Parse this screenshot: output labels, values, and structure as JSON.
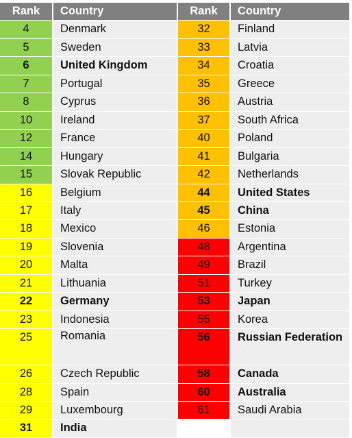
{
  "colors": {
    "header": "#808080",
    "green": "#92d050",
    "yellow": "#ffff00",
    "orange": "#ffc000",
    "red": "#ff0000",
    "country_bg": "#eeeeee"
  },
  "headers": {
    "rank": "Rank",
    "country": "Country"
  },
  "left": [
    {
      "rank": "4",
      "country": "Denmark",
      "band": "green",
      "bold": false
    },
    {
      "rank": "5",
      "country": "Sweden",
      "band": "green",
      "bold": false
    },
    {
      "rank": "6",
      "country": "United Kingdom",
      "band": "green",
      "bold": true
    },
    {
      "rank": "7",
      "country": "Portugal",
      "band": "green",
      "bold": false
    },
    {
      "rank": "8",
      "country": "Cyprus",
      "band": "green",
      "bold": false
    },
    {
      "rank": "10",
      "country": "Ireland",
      "band": "green",
      "bold": false
    },
    {
      "rank": "12",
      "country": "France",
      "band": "green",
      "bold": false
    },
    {
      "rank": "14",
      "country": "Hungary",
      "band": "green",
      "bold": false
    },
    {
      "rank": "15",
      "country": "Slovak Republic",
      "band": "green",
      "bold": false
    },
    {
      "rank": "16",
      "country": "Belgium",
      "band": "yellow",
      "bold": false
    },
    {
      "rank": "17",
      "country": "Italy",
      "band": "yellow",
      "bold": false
    },
    {
      "rank": "18",
      "country": "Mexico",
      "band": "yellow",
      "bold": false
    },
    {
      "rank": "19",
      "country": "Slovenia",
      "band": "yellow",
      "bold": false
    },
    {
      "rank": "20",
      "country": "Malta",
      "band": "yellow",
      "bold": false
    },
    {
      "rank": "21",
      "country": "Lithuania",
      "band": "yellow",
      "bold": false
    },
    {
      "rank": "22",
      "country": "Germany",
      "band": "yellow",
      "bold": true
    },
    {
      "rank": "23",
      "country": "Indonesia",
      "band": "yellow",
      "bold": false
    },
    {
      "rank": "25",
      "country": "Romania",
      "band": "yellow",
      "bold": false
    },
    {
      "rank": "26",
      "country": "Czech Republic",
      "band": "yellow",
      "bold": false
    },
    {
      "rank": "28",
      "country": "Spain",
      "band": "yellow",
      "bold": false
    },
    {
      "rank": "29",
      "country": "Luxembourg",
      "band": "yellow",
      "bold": false
    },
    {
      "rank": "31",
      "country": "India",
      "band": "yellow",
      "bold": true
    }
  ],
  "right": [
    {
      "rank": "32",
      "country": "Finland",
      "band": "orange",
      "bold": false
    },
    {
      "rank": "33",
      "country": "Latvia",
      "band": "orange",
      "bold": false
    },
    {
      "rank": "34",
      "country": "Croatia",
      "band": "orange",
      "bold": false
    },
    {
      "rank": "35",
      "country": "Greece",
      "band": "orange",
      "bold": false
    },
    {
      "rank": "36",
      "country": "Austria",
      "band": "orange",
      "bold": false
    },
    {
      "rank": "37",
      "country": "South Africa",
      "band": "orange",
      "bold": false
    },
    {
      "rank": "40",
      "country": "Poland",
      "band": "orange",
      "bold": false
    },
    {
      "rank": "41",
      "country": "Bulgaria",
      "band": "orange",
      "bold": false
    },
    {
      "rank": "42",
      "country": "Netherlands",
      "band": "orange",
      "bold": false
    },
    {
      "rank": "44",
      "country": "United States",
      "band": "orange",
      "bold": true
    },
    {
      "rank": "45",
      "country": "China",
      "band": "orange",
      "bold": true
    },
    {
      "rank": "46",
      "country": "Estonia",
      "band": "orange",
      "bold": false
    },
    {
      "rank": "48",
      "country": "Argentina",
      "band": "red",
      "bold": false
    },
    {
      "rank": "49",
      "country": "Brazil",
      "band": "red",
      "bold": false
    },
    {
      "rank": "51",
      "country": "Turkey",
      "band": "red",
      "bold": false
    },
    {
      "rank": "53",
      "country": "Japan",
      "band": "red",
      "bold": true
    },
    {
      "rank": "55",
      "country": "Korea",
      "band": "red",
      "bold": false
    },
    {
      "rank": "56",
      "country": "Russian Federation",
      "band": "red",
      "bold": true
    },
    {
      "rank": "58",
      "country": "Canada",
      "band": "red",
      "bold": true
    },
    {
      "rank": "60",
      "country": "Australia",
      "band": "red",
      "bold": true
    },
    {
      "rank": "61",
      "country": "Saudi Arabia",
      "band": "red",
      "bold": false
    }
  ]
}
